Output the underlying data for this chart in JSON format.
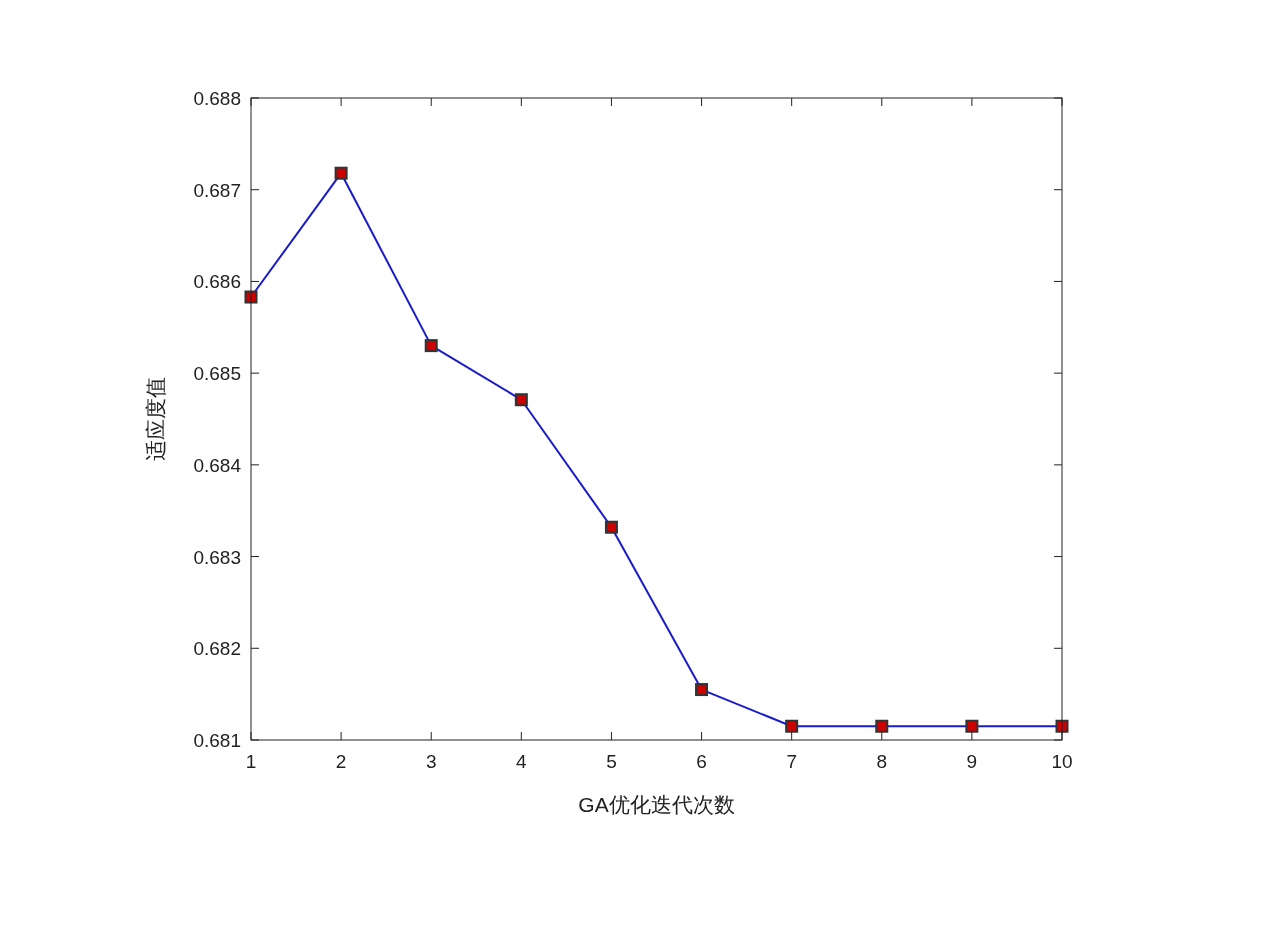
{
  "chart_data": {
    "type": "line",
    "xlabel": "GA优化迭代次数",
    "ylabel": "适应度值",
    "x": [
      1,
      2,
      3,
      4,
      5,
      6,
      7,
      8,
      9,
      10
    ],
    "series": [
      {
        "color": "#1a1acd",
        "colors": [
          "#cc0000",
          "#cc0000",
          "#cc0000",
          "#cc0000",
          "#cc0000",
          "#cc0000",
          "#cc0000",
          "#cc0000",
          "#cc0000",
          "#cc0000"
        ],
        "values": [
          0.68583,
          0.68718,
          0.6853,
          0.68471,
          0.68332,
          0.68155,
          0.68115,
          0.68115,
          0.68115,
          0.68115
        ]
      }
    ],
    "xlim": [
      1,
      10
    ],
    "xticks": [
      1,
      2,
      3,
      4,
      5,
      6,
      7,
      8,
      9,
      10
    ],
    "ylim": [
      0.681,
      0.688
    ],
    "yticks": [
      0.681,
      0.682,
      0.683,
      0.684,
      0.685,
      0.686,
      0.687,
      0.688
    ],
    "marker": "square",
    "line_style": "solid"
  }
}
